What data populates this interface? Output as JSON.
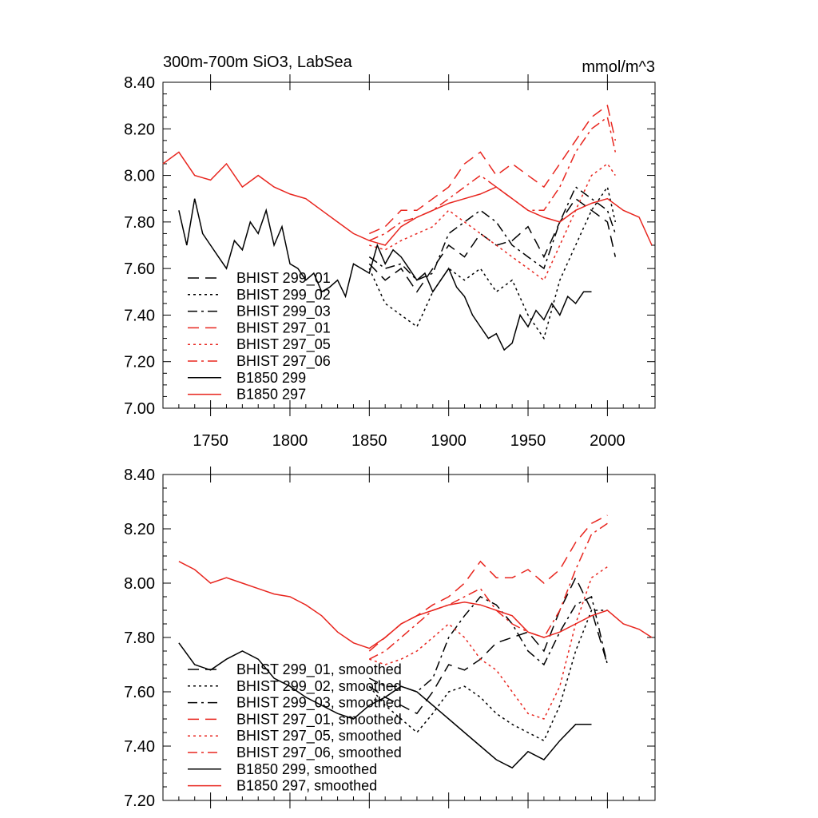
{
  "chart_data": [
    {
      "type": "line",
      "title": "300m-700m SiO3, LabSea",
      "units": "mmol/m^3",
      "xlim": [
        1720,
        2030
      ],
      "ylim": [
        7.0,
        8.4
      ],
      "xticks": [
        1750,
        1800,
        1850,
        1900,
        1950,
        2000
      ],
      "yticks": [
        "7.00",
        "7.20",
        "7.40",
        "7.60",
        "7.80",
        "8.00",
        "8.20",
        "8.40"
      ],
      "legend_position": "lower-left",
      "series": [
        {
          "name": "BHIST 299_01",
          "color": "#000000",
          "style": "dashed",
          "x": [
            1850,
            1860,
            1870,
            1880,
            1890,
            1900,
            1910,
            1920,
            1930,
            1940,
            1950,
            1960,
            1970,
            1980,
            1990,
            2000,
            2005
          ],
          "y": [
            7.62,
            7.55,
            7.6,
            7.5,
            7.6,
            7.7,
            7.65,
            7.75,
            7.7,
            7.72,
            7.78,
            7.65,
            7.8,
            7.9,
            7.85,
            7.8,
            7.65
          ]
        },
        {
          "name": "BHIST 299_02",
          "color": "#000000",
          "style": "dotted",
          "x": [
            1850,
            1860,
            1870,
            1880,
            1890,
            1900,
            1910,
            1920,
            1930,
            1940,
            1950,
            1960,
            1970,
            1980,
            1990,
            2000,
            2005
          ],
          "y": [
            7.6,
            7.45,
            7.4,
            7.35,
            7.5,
            7.6,
            7.55,
            7.6,
            7.5,
            7.55,
            7.4,
            7.3,
            7.55,
            7.7,
            7.85,
            7.95,
            7.8
          ]
        },
        {
          "name": "BHIST 299_03",
          "color": "#000000",
          "style": "dashdot",
          "x": [
            1850,
            1860,
            1870,
            1880,
            1890,
            1900,
            1910,
            1920,
            1930,
            1940,
            1950,
            1960,
            1970,
            1980,
            1990,
            2000,
            2005
          ],
          "y": [
            7.65,
            7.6,
            7.62,
            7.55,
            7.58,
            7.75,
            7.8,
            7.85,
            7.8,
            7.7,
            7.65,
            7.6,
            7.8,
            7.95,
            7.9,
            7.85,
            7.75
          ]
        },
        {
          "name": "BHIST 297_01",
          "color": "#e8261f",
          "style": "dashed",
          "x": [
            1850,
            1860,
            1870,
            1880,
            1890,
            1900,
            1910,
            1920,
            1930,
            1940,
            1950,
            1960,
            1970,
            1980,
            1990,
            2000,
            2005
          ],
          "y": [
            7.75,
            7.78,
            7.85,
            7.85,
            7.9,
            7.95,
            8.05,
            8.1,
            8.0,
            8.05,
            8.0,
            7.95,
            8.05,
            8.15,
            8.25,
            8.3,
            8.15
          ]
        },
        {
          "name": "BHIST 297_05",
          "color": "#e8261f",
          "style": "dotted",
          "x": [
            1850,
            1860,
            1870,
            1880,
            1890,
            1900,
            1910,
            1920,
            1930,
            1940,
            1950,
            1960,
            1970,
            1980,
            1990,
            2000,
            2005
          ],
          "y": [
            7.7,
            7.68,
            7.72,
            7.75,
            7.78,
            7.85,
            7.8,
            7.75,
            7.7,
            7.65,
            7.6,
            7.55,
            7.7,
            7.85,
            8.0,
            8.05,
            8.0
          ]
        },
        {
          "name": "BHIST 297_06",
          "color": "#e8261f",
          "style": "dashdot",
          "x": [
            1850,
            1860,
            1870,
            1880,
            1890,
            1900,
            1910,
            1920,
            1930,
            1940,
            1950,
            1960,
            1970,
            1980,
            1990,
            2000,
            2005
          ],
          "y": [
            7.72,
            7.75,
            7.8,
            7.82,
            7.85,
            7.9,
            7.95,
            8.0,
            7.95,
            7.9,
            7.85,
            7.85,
            7.95,
            8.1,
            8.2,
            8.25,
            8.1
          ]
        },
        {
          "name": "B1850 299",
          "color": "#000000",
          "style": "solid",
          "x": [
            1730,
            1735,
            1740,
            1745,
            1750,
            1755,
            1760,
            1765,
            1770,
            1775,
            1780,
            1785,
            1790,
            1795,
            1800,
            1805,
            1810,
            1815,
            1820,
            1825,
            1830,
            1835,
            1840,
            1845,
            1850,
            1855,
            1860,
            1865,
            1870,
            1875,
            1880,
            1885,
            1890,
            1895,
            1900,
            1905,
            1910,
            1915,
            1920,
            1925,
            1930,
            1935,
            1940,
            1945,
            1950,
            1955,
            1960,
            1965,
            1970,
            1975,
            1980,
            1985,
            1990
          ],
          "y": [
            7.85,
            7.7,
            7.9,
            7.75,
            7.7,
            7.65,
            7.6,
            7.72,
            7.68,
            7.8,
            7.75,
            7.85,
            7.7,
            7.78,
            7.62,
            7.6,
            7.55,
            7.58,
            7.5,
            7.52,
            7.55,
            7.48,
            7.62,
            7.6,
            7.58,
            7.7,
            7.62,
            7.68,
            7.65,
            7.6,
            7.55,
            7.58,
            7.5,
            7.55,
            7.6,
            7.52,
            7.48,
            7.4,
            7.35,
            7.3,
            7.32,
            7.25,
            7.28,
            7.4,
            7.35,
            7.42,
            7.38,
            7.45,
            7.4,
            7.48,
            7.45,
            7.5,
            7.5
          ]
        },
        {
          "name": "B1850 297",
          "color": "#e8261f",
          "style": "solid",
          "x": [
            1720,
            1730,
            1740,
            1750,
            1760,
            1770,
            1780,
            1790,
            1800,
            1810,
            1820,
            1830,
            1840,
            1850,
            1860,
            1870,
            1880,
            1890,
            1900,
            1910,
            1920,
            1930,
            1940,
            1950,
            1960,
            1970,
            1980,
            1990,
            2000,
            2010,
            2020,
            2028
          ],
          "y": [
            8.05,
            8.1,
            8.0,
            7.98,
            8.05,
            7.95,
            8.0,
            7.95,
            7.92,
            7.9,
            7.85,
            7.8,
            7.75,
            7.72,
            7.7,
            7.78,
            7.82,
            7.85,
            7.88,
            7.9,
            7.92,
            7.95,
            7.9,
            7.85,
            7.82,
            7.8,
            7.85,
            7.88,
            7.9,
            7.85,
            7.82,
            7.7
          ]
        }
      ]
    },
    {
      "type": "line",
      "xlim": [
        1720,
        2030
      ],
      "ylim": [
        7.2,
        8.4
      ],
      "yticks": [
        "7.20",
        "7.40",
        "7.60",
        "7.80",
        "8.00",
        "8.20",
        "8.40"
      ],
      "legend_position": "lower-left",
      "series": [
        {
          "name": "BHIST 299_01, smoothed",
          "color": "#000000",
          "style": "dashed",
          "x": [
            1850,
            1860,
            1870,
            1880,
            1890,
            1900,
            1910,
            1920,
            1930,
            1940,
            1950,
            1960,
            1970,
            1980,
            1990,
            2000
          ],
          "y": [
            7.62,
            7.58,
            7.55,
            7.52,
            7.6,
            7.7,
            7.68,
            7.72,
            7.78,
            7.8,
            7.82,
            7.75,
            7.9,
            8.02,
            7.9,
            7.7
          ]
        },
        {
          "name": "BHIST 299_02, smoothed",
          "color": "#000000",
          "style": "dotted",
          "x": [
            1850,
            1860,
            1870,
            1880,
            1890,
            1900,
            1910,
            1920,
            1930,
            1940,
            1950,
            1960,
            1970,
            1980,
            1990,
            2000
          ],
          "y": [
            7.62,
            7.55,
            7.5,
            7.45,
            7.52,
            7.6,
            7.62,
            7.58,
            7.52,
            7.48,
            7.45,
            7.42,
            7.55,
            7.75,
            7.9,
            7.9
          ]
        },
        {
          "name": "BHIST 299_03, smoothed",
          "color": "#000000",
          "style": "dashdot",
          "x": [
            1850,
            1860,
            1870,
            1880,
            1890,
            1900,
            1910,
            1920,
            1930,
            1940,
            1950,
            1960,
            1970,
            1980,
            1990,
            2000
          ],
          "y": [
            7.65,
            7.62,
            7.62,
            7.6,
            7.65,
            7.8,
            7.88,
            7.95,
            7.92,
            7.85,
            7.75,
            7.7,
            7.82,
            7.92,
            7.95,
            7.7
          ]
        },
        {
          "name": "BHIST 297_01, smoothed",
          "color": "#e8261f",
          "style": "dashed",
          "x": [
            1850,
            1860,
            1870,
            1880,
            1890,
            1900,
            1910,
            1920,
            1930,
            1940,
            1950,
            1960,
            1970,
            1980,
            1990,
            2000
          ],
          "y": [
            7.75,
            7.8,
            7.85,
            7.88,
            7.92,
            7.95,
            8.0,
            8.08,
            8.02,
            8.02,
            8.05,
            8.0,
            8.05,
            8.15,
            8.22,
            8.25
          ]
        },
        {
          "name": "BHIST 297_05, smoothed",
          "color": "#e8261f",
          "style": "dotted",
          "x": [
            1850,
            1860,
            1870,
            1880,
            1890,
            1900,
            1910,
            1920,
            1930,
            1940,
            1950,
            1960,
            1970,
            1980,
            1990,
            2000
          ],
          "y": [
            7.72,
            7.7,
            7.72,
            7.75,
            7.8,
            7.85,
            7.8,
            7.72,
            7.68,
            7.6,
            7.52,
            7.5,
            7.62,
            7.85,
            8.02,
            8.06
          ]
        },
        {
          "name": "BHIST 297_06, smoothed",
          "color": "#e8261f",
          "style": "dashdot",
          "x": [
            1850,
            1860,
            1870,
            1880,
            1890,
            1900,
            1910,
            1920,
            1930,
            1940,
            1950,
            1960,
            1970,
            1980,
            1990,
            2000
          ],
          "y": [
            7.72,
            7.75,
            7.8,
            7.85,
            7.9,
            7.92,
            7.95,
            7.98,
            7.9,
            7.85,
            7.82,
            7.8,
            7.9,
            8.05,
            8.18,
            8.22
          ]
        },
        {
          "name": "B1850 299, smoothed",
          "color": "#000000",
          "style": "solid",
          "x": [
            1730,
            1740,
            1750,
            1760,
            1770,
            1780,
            1790,
            1800,
            1810,
            1820,
            1830,
            1840,
            1850,
            1860,
            1870,
            1880,
            1890,
            1900,
            1910,
            1920,
            1930,
            1940,
            1950,
            1960,
            1970,
            1980,
            1990
          ],
          "y": [
            7.78,
            7.7,
            7.68,
            7.72,
            7.75,
            7.72,
            7.65,
            7.62,
            7.58,
            7.55,
            7.52,
            7.5,
            7.55,
            7.58,
            7.62,
            7.6,
            7.55,
            7.5,
            7.45,
            7.4,
            7.35,
            7.32,
            7.38,
            7.35,
            7.42,
            7.48,
            7.48
          ]
        },
        {
          "name": "B1850 297, smoothed",
          "color": "#e8261f",
          "style": "solid",
          "x": [
            1730,
            1740,
            1750,
            1760,
            1770,
            1780,
            1790,
            1800,
            1810,
            1820,
            1830,
            1840,
            1850,
            1860,
            1870,
            1880,
            1890,
            1900,
            1910,
            1920,
            1930,
            1940,
            1950,
            1960,
            1970,
            1980,
            1990,
            2000,
            2010,
            2020,
            2028
          ],
          "y": [
            8.08,
            8.05,
            8.0,
            8.02,
            8.0,
            7.98,
            7.96,
            7.95,
            7.92,
            7.88,
            7.82,
            7.78,
            7.76,
            7.8,
            7.85,
            7.88,
            7.9,
            7.92,
            7.93,
            7.92,
            7.9,
            7.88,
            7.82,
            7.8,
            7.82,
            7.85,
            7.88,
            7.9,
            7.85,
            7.83,
            7.8
          ]
        }
      ]
    }
  ]
}
